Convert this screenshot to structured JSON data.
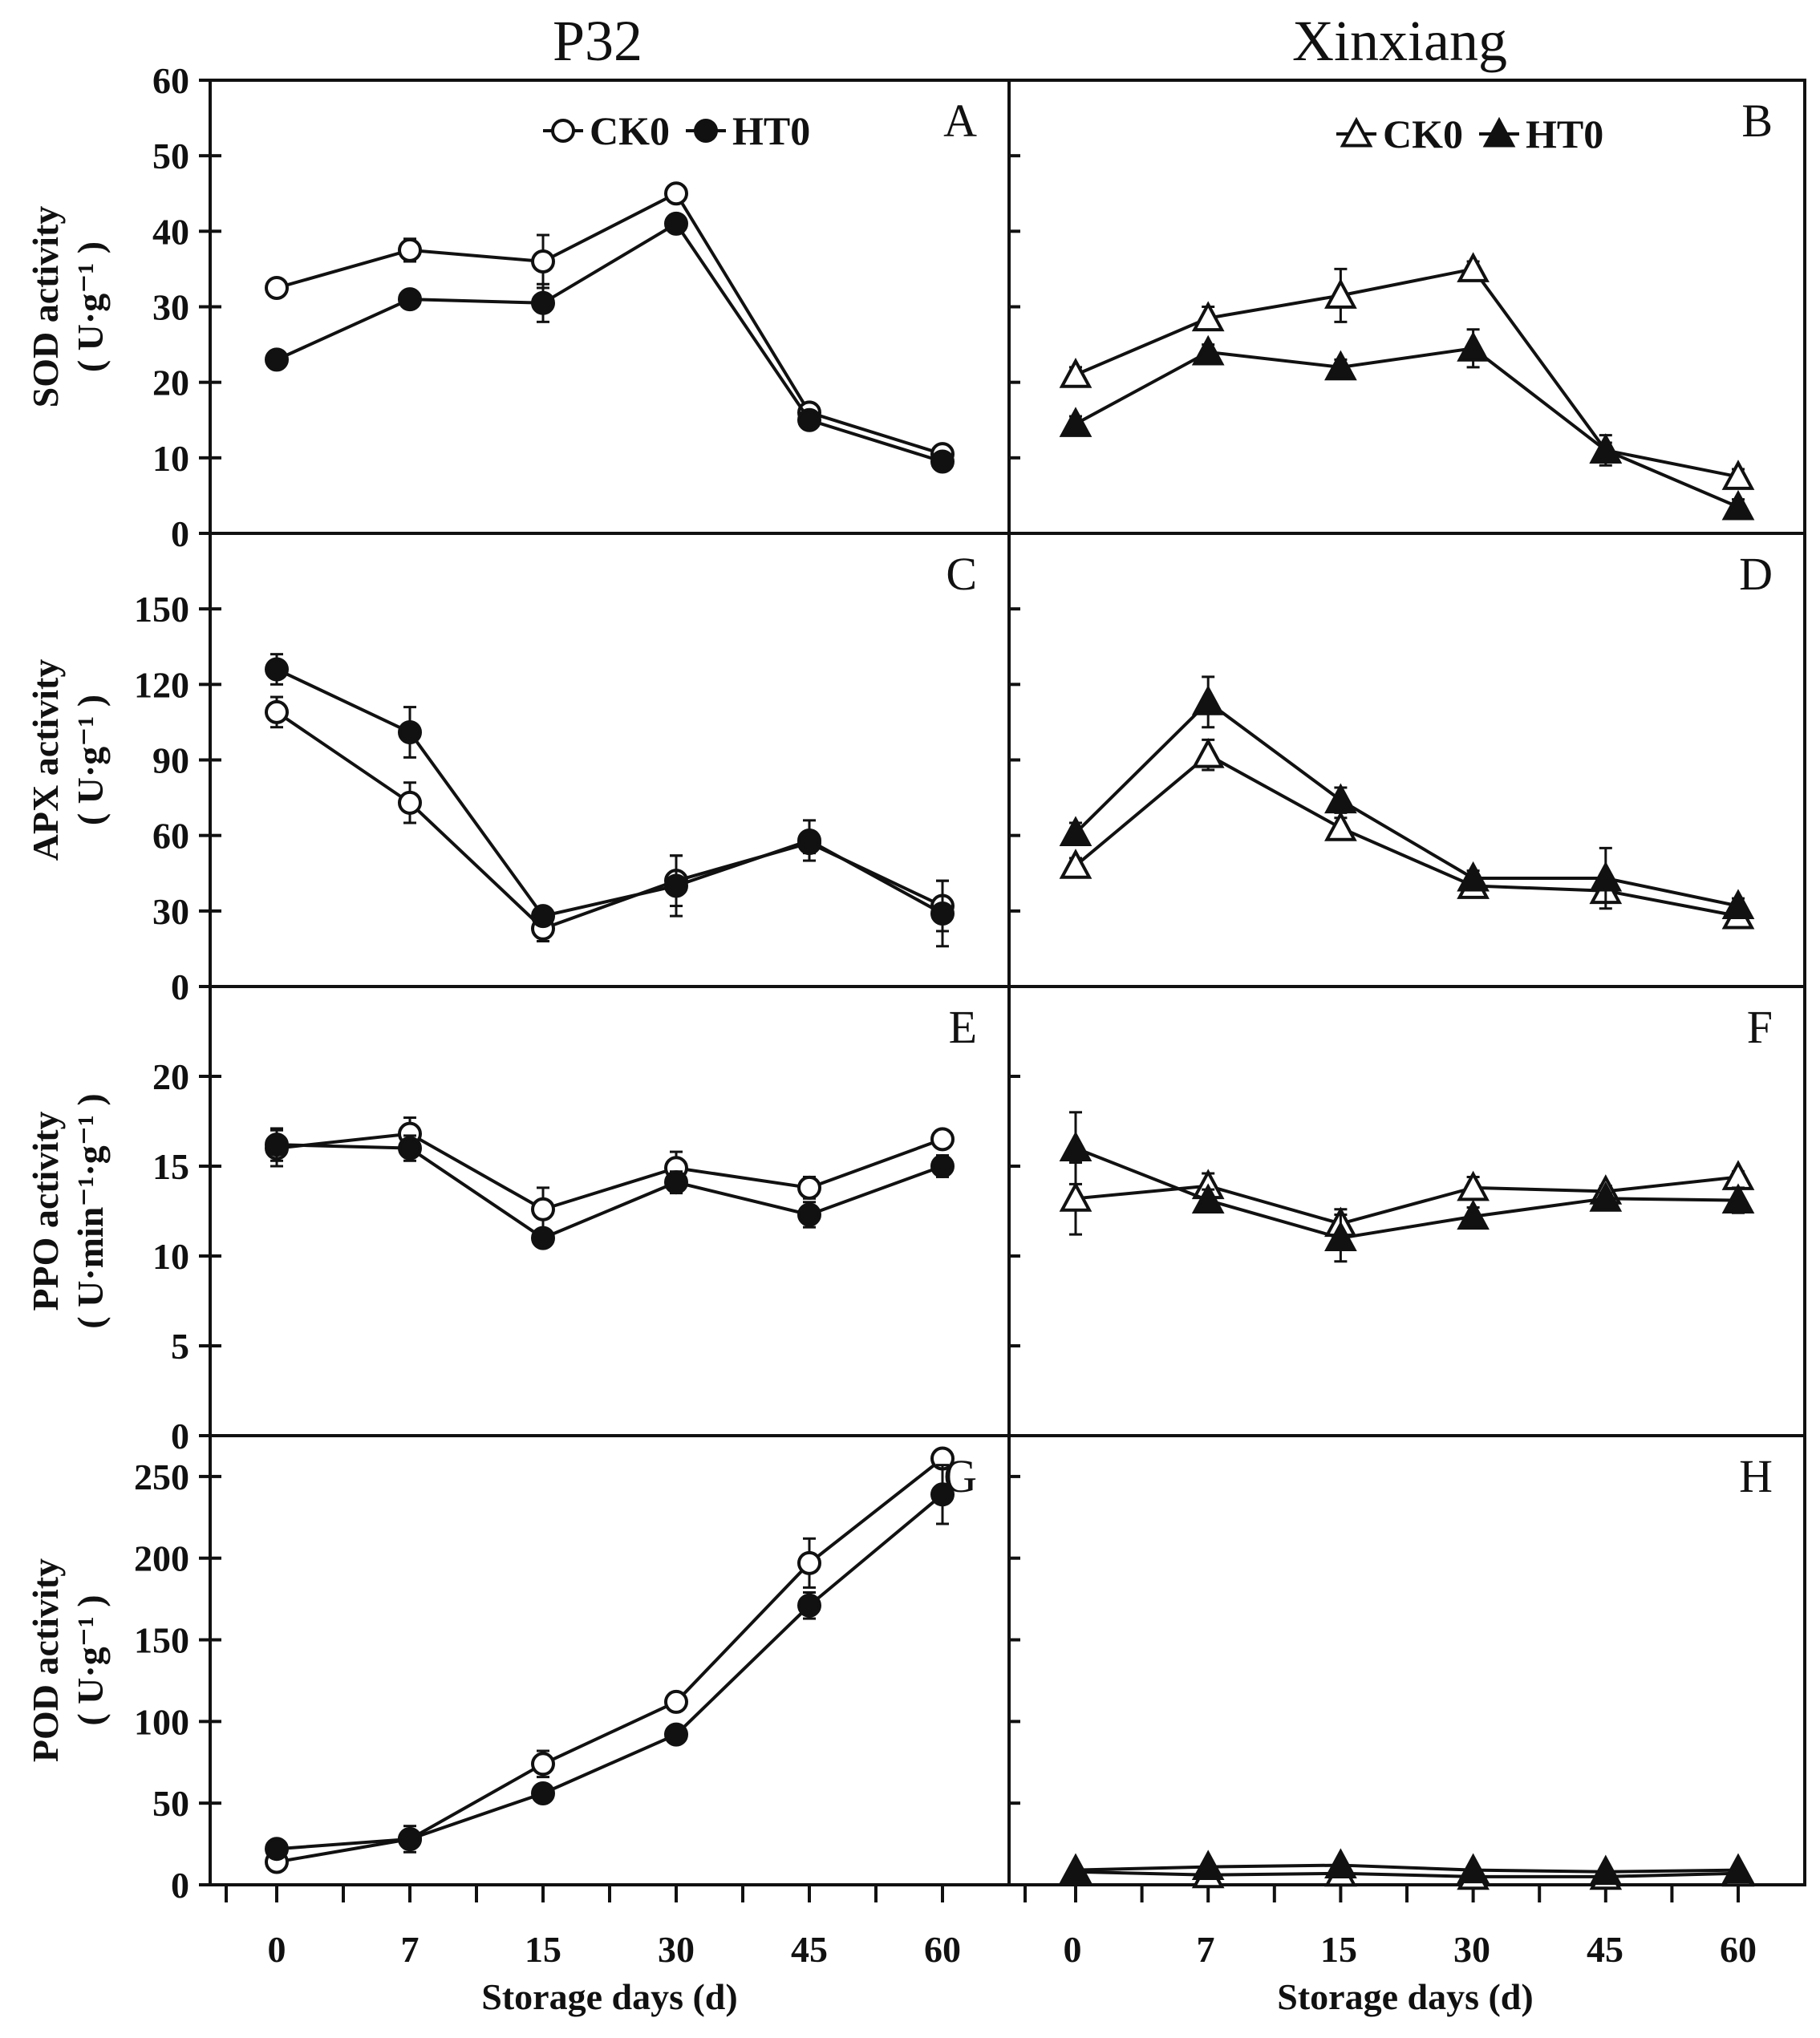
{
  "figure": {
    "column_titles": [
      "P32",
      "Xinxiang"
    ],
    "xlabel": "Storage days (d)",
    "x_ticks": [
      "0",
      "7",
      "15",
      "30",
      "45",
      "60"
    ]
  },
  "chart_data": [
    {
      "panel": "A",
      "type": "line",
      "cultivar": "P32",
      "row": 0,
      "col": 0,
      "ylabel": [
        "SOD activity",
        "( U·g⁻¹ )"
      ],
      "ylim": [
        0,
        60
      ],
      "yticks": [
        0,
        10,
        20,
        30,
        40,
        50,
        60
      ],
      "x": [
        0,
        7,
        15,
        30,
        45,
        60
      ],
      "legend": [
        {
          "label": "CK0",
          "marker": "circle-open"
        },
        {
          "label": "HT0",
          "marker": "circle-filled"
        }
      ],
      "series": [
        {
          "name": "CK0",
          "marker": "circle-open",
          "values": [
            32.5,
            37.5,
            36,
            45,
            16,
            10.5
          ],
          "errors": [
            1,
            1.5,
            3.5,
            1,
            1,
            1
          ]
        },
        {
          "name": "HT0",
          "marker": "circle-filled",
          "values": [
            23,
            31,
            30.5,
            41,
            15,
            9.5
          ],
          "errors": [
            1,
            1,
            2.5,
            1,
            1,
            1
          ]
        }
      ]
    },
    {
      "panel": "B",
      "type": "line",
      "cultivar": "Xinxiang",
      "row": 0,
      "col": 1,
      "ylim": [
        0,
        60
      ],
      "yticks": [
        0,
        10,
        20,
        30,
        40,
        50,
        60
      ],
      "x": [
        0,
        7,
        15,
        30,
        45,
        60
      ],
      "legend": [
        {
          "label": "CK0",
          "marker": "triangle-open"
        },
        {
          "label": "HT0",
          "marker": "triangle-filled"
        }
      ],
      "series": [
        {
          "name": "CK0",
          "marker": "triangle-open",
          "values": [
            21,
            28.5,
            31.5,
            35,
            11,
            7.5
          ],
          "errors": [
            1,
            1.5,
            3.5,
            1,
            1,
            1
          ]
        },
        {
          "name": "HT0",
          "marker": "triangle-filled",
          "values": [
            14.5,
            24,
            22,
            24.5,
            11,
            3.5
          ],
          "errors": [
            1,
            1,
            1,
            2.5,
            2,
            1
          ]
        }
      ]
    },
    {
      "panel": "C",
      "type": "line",
      "cultivar": "P32",
      "row": 1,
      "col": 0,
      "ylabel": [
        "APX activity",
        "( U·g⁻¹ )"
      ],
      "ylim": [
        0,
        180
      ],
      "yticks": [
        0,
        30,
        60,
        90,
        120,
        150
      ],
      "x": [
        0,
        7,
        15,
        30,
        45,
        60
      ],
      "series": [
        {
          "name": "CK0",
          "marker": "circle-open",
          "values": [
            109,
            73,
            23,
            42,
            57,
            32
          ],
          "errors": [
            6,
            8,
            5,
            10,
            4,
            10
          ]
        },
        {
          "name": "HT0",
          "marker": "circle-filled",
          "values": [
            126,
            101,
            28,
            40,
            58,
            29
          ],
          "errors": [
            6,
            10,
            3,
            12,
            8,
            13
          ]
        }
      ]
    },
    {
      "panel": "D",
      "type": "line",
      "cultivar": "Xinxiang",
      "row": 1,
      "col": 1,
      "ylim": [
        0,
        180
      ],
      "yticks": [
        0,
        30,
        60,
        90,
        120,
        150
      ],
      "x": [
        0,
        7,
        15,
        30,
        45,
        60
      ],
      "series": [
        {
          "name": "CK0",
          "marker": "triangle-open",
          "values": [
            48,
            92,
            63,
            40,
            38,
            28
          ],
          "errors": [
            3,
            6,
            4,
            3,
            4,
            2
          ]
        },
        {
          "name": "HT0",
          "marker": "triangle-filled",
          "values": [
            61,
            113,
            74,
            43,
            43,
            32
          ],
          "errors": [
            4,
            10,
            5,
            3,
            12,
            3
          ]
        }
      ]
    },
    {
      "panel": "E",
      "type": "line",
      "cultivar": "P32",
      "row": 2,
      "col": 0,
      "ylabel": [
        "PPO activity",
        "( U·min⁻¹·g⁻¹ )"
      ],
      "ylim": [
        0,
        25
      ],
      "yticks": [
        0,
        5,
        10,
        15,
        20
      ],
      "x": [
        0,
        7,
        15,
        30,
        45,
        60
      ],
      "series": [
        {
          "name": "CK0",
          "marker": "circle-open",
          "values": [
            16,
            16.8,
            12.6,
            14.9,
            13.8,
            16.5
          ],
          "errors": [
            1,
            0.9,
            1.2,
            0.9,
            0.6,
            0.4
          ]
        },
        {
          "name": "HT0",
          "marker": "circle-filled",
          "values": [
            16.2,
            16,
            11,
            14.1,
            12.3,
            15
          ],
          "errors": [
            0.9,
            0.7,
            0.4,
            0.6,
            0.7,
            0.6
          ]
        }
      ]
    },
    {
      "panel": "F",
      "type": "line",
      "cultivar": "Xinxiang",
      "row": 2,
      "col": 1,
      "ylim": [
        0,
        25
      ],
      "yticks": [
        0,
        5,
        10,
        15,
        20
      ],
      "x": [
        0,
        7,
        15,
        30,
        45,
        60
      ],
      "series": [
        {
          "name": "CK0",
          "marker": "triangle-open",
          "values": [
            13.2,
            13.9,
            11.8,
            13.8,
            13.6,
            14.4
          ],
          "errors": [
            2,
            0.7,
            0.8,
            0.6,
            0.3,
            0.3
          ]
        },
        {
          "name": "HT0",
          "marker": "triangle-filled",
          "values": [
            16,
            13.1,
            11,
            12.2,
            13.2,
            13.1
          ],
          "errors": [
            2,
            0.6,
            1.3,
            0.5,
            0.3,
            0.7
          ]
        }
      ]
    },
    {
      "panel": "G",
      "type": "line",
      "cultivar": "P32",
      "row": 3,
      "col": 0,
      "ylabel": [
        "POD activity",
        "( U·g⁻¹ )"
      ],
      "ylim": [
        0,
        275
      ],
      "yticks": [
        0,
        50,
        100,
        150,
        200,
        250
      ],
      "x": [
        0,
        7,
        15,
        30,
        45,
        60
      ],
      "series": [
        {
          "name": "CK0",
          "marker": "circle-open",
          "values": [
            14,
            28,
            74,
            112,
            197,
            261
          ],
          "errors": [
            5,
            8,
            8,
            5,
            15,
            5
          ]
        },
        {
          "name": "HT0",
          "marker": "circle-filled",
          "values": [
            22,
            28,
            56,
            92,
            171,
            239
          ],
          "errors": [
            4,
            5,
            4,
            4,
            8,
            18
          ]
        }
      ]
    },
    {
      "panel": "H",
      "type": "line",
      "cultivar": "Xinxiang",
      "row": 3,
      "col": 1,
      "ylim": [
        0,
        275
      ],
      "yticks": [
        0,
        50,
        100,
        150,
        200,
        250
      ],
      "x": [
        0,
        7,
        15,
        30,
        45,
        60
      ],
      "series": [
        {
          "name": "CK0",
          "marker": "triangle-open",
          "values": [
            8,
            6,
            7,
            5,
            5,
            7
          ],
          "errors": [
            1,
            1,
            1,
            1,
            1,
            1
          ]
        },
        {
          "name": "HT0",
          "marker": "triangle-filled",
          "values": [
            9,
            11,
            12,
            9,
            8,
            9
          ],
          "errors": [
            1,
            1,
            1,
            1,
            1,
            1
          ]
        }
      ]
    }
  ]
}
